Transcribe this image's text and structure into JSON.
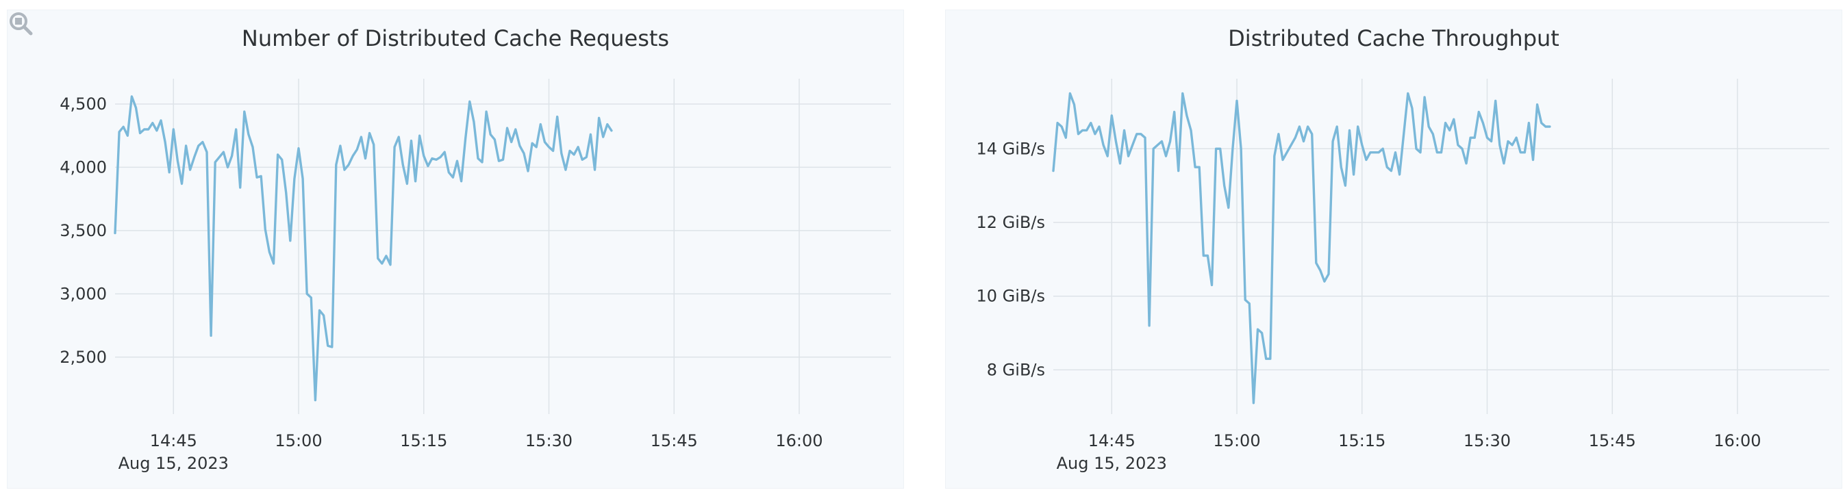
{
  "colors": {
    "line": "#7ab8d9",
    "panel_bg": "#f6f9fc",
    "grid": "#dde3e8",
    "text": "#2f3336"
  },
  "zoom_icon": "magnifier-zoom-icon",
  "chart_data": [
    {
      "type": "line",
      "title": "Number of Distributed Cache Requests",
      "xlabel": "",
      "ylabel": "",
      "x_start": "14:38",
      "x_step_min": 0.5,
      "xlim": [
        "14:38",
        "16:11"
      ],
      "x_ticks": [
        "14:45",
        "15:00",
        "15:15",
        "15:30",
        "15:45",
        "16:00"
      ],
      "x_date_label": "Aug 15, 2023",
      "ylim": [
        2050,
        4700
      ],
      "y_ticks": [
        2500,
        3000,
        3500,
        4000,
        4500
      ],
      "y_tick_labels": [
        "2,500",
        "3,000",
        "3,500",
        "4,000",
        "4,500"
      ],
      "grid": true,
      "legend": "none",
      "values": [
        3480,
        4280,
        4320,
        4250,
        4560,
        4470,
        4270,
        4300,
        4300,
        4350,
        4290,
        4370,
        4200,
        3960,
        4300,
        4050,
        3870,
        4170,
        3980,
        4080,
        4170,
        4200,
        4120,
        2670,
        4040,
        4080,
        4120,
        4000,
        4090,
        4300,
        3840,
        4440,
        4260,
        4160,
        3920,
        3930,
        3510,
        3330,
        3240,
        4100,
        4060,
        3800,
        3420,
        3910,
        4150,
        3910,
        3000,
        2970,
        2160,
        2870,
        2830,
        2590,
        2580,
        4020,
        4170,
        3980,
        4020,
        4090,
        4140,
        4240,
        4070,
        4270,
        4180,
        3280,
        3240,
        3300,
        3230,
        4160,
        4240,
        4020,
        3870,
        4210,
        3890,
        4250,
        4090,
        4010,
        4070,
        4060,
        4080,
        4120,
        3960,
        3920,
        4050,
        3890,
        4230,
        4520,
        4360,
        4070,
        4040,
        4440,
        4260,
        4220,
        4050,
        4060,
        4310,
        4200,
        4300,
        4170,
        4110,
        3970,
        4190,
        4160,
        4340,
        4200,
        4160,
        4130,
        4400,
        4110,
        3980,
        4130,
        4100,
        4160,
        4060,
        4080,
        4260,
        3980,
        4390,
        4240,
        4340,
        4290
      ]
    },
    {
      "type": "line",
      "title": "Distributed Cache Throughput",
      "xlabel": "",
      "ylabel": "",
      "x_start": "14:38",
      "x_step_min": 0.5,
      "xlim": [
        "14:38",
        "16:11"
      ],
      "x_ticks": [
        "14:45",
        "15:00",
        "15:15",
        "15:30",
        "15:45",
        "16:00"
      ],
      "x_date_label": "Aug 15, 2023",
      "ylim": [
        6.8,
        15.9
      ],
      "y_unit": "GiB/s",
      "y_ticks": [
        8,
        10,
        12,
        14
      ],
      "y_tick_labels": [
        "8 GiB/s",
        "10 GiB/s",
        "12 GiB/s",
        "14 GiB/s"
      ],
      "grid": true,
      "legend": "none",
      "values": [
        13.4,
        14.7,
        14.6,
        14.3,
        15.5,
        15.2,
        14.4,
        14.5,
        14.5,
        14.7,
        14.4,
        14.6,
        14.1,
        13.8,
        14.9,
        14.2,
        13.6,
        14.5,
        13.8,
        14.1,
        14.4,
        14.4,
        14.3,
        9.2,
        14.0,
        14.1,
        14.2,
        13.8,
        14.2,
        15.0,
        13.4,
        15.5,
        14.9,
        14.5,
        13.5,
        13.5,
        11.1,
        11.1,
        10.3,
        14.0,
        14.0,
        13.0,
        12.4,
        14.0,
        15.3,
        14.0,
        9.9,
        9.8,
        7.1,
        9.1,
        9.0,
        8.3,
        8.3,
        13.8,
        14.4,
        13.7,
        13.9,
        14.1,
        14.3,
        14.6,
        14.2,
        14.6,
        14.4,
        10.9,
        10.7,
        10.4,
        10.6,
        14.2,
        14.6,
        13.5,
        13.0,
        14.5,
        13.3,
        14.6,
        14.1,
        13.7,
        13.9,
        13.9,
        13.9,
        14.0,
        13.5,
        13.4,
        13.9,
        13.3,
        14.4,
        15.5,
        15.1,
        14.0,
        13.9,
        15.4,
        14.6,
        14.4,
        13.9,
        13.9,
        14.7,
        14.5,
        14.8,
        14.1,
        14.0,
        13.6,
        14.3,
        14.3,
        15.0,
        14.7,
        14.3,
        14.2,
        15.3,
        14.1,
        13.6,
        14.2,
        14.1,
        14.3,
        13.9,
        13.9,
        14.7,
        13.7,
        15.2,
        14.7,
        14.6,
        14.6
      ]
    }
  ]
}
